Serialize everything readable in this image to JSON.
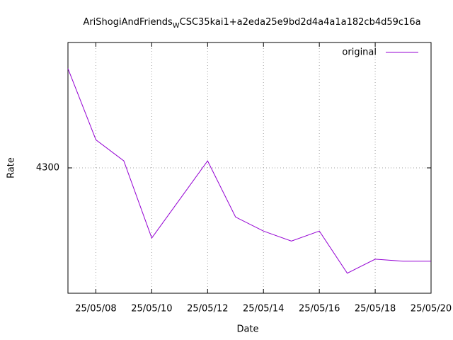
{
  "chart_data": {
    "type": "line",
    "title": [
      "AriShogiAndFriends",
      "W",
      "CSC35kai1+a2eda25e9bd2d4a4a1a182cb4d59c16a"
    ],
    "x_label": "Date",
    "y_label": "Rate",
    "x": [
      "25/05/07",
      "25/05/08",
      "25/05/09",
      "25/05/10",
      "25/05/12",
      "25/05/13",
      "25/05/14",
      "25/05/15",
      "25/05/16",
      "25/05/17",
      "25/05/18",
      "25/05/19",
      "25/05/20"
    ],
    "series": [
      {
        "name": "original",
        "color": "#9400d3",
        "values": [
          4399,
          4328,
          4307,
          4230,
          4307,
          4251,
          4237,
          4227,
          4237,
          4195,
          4209,
          4207,
          4207
        ]
      }
    ],
    "xlim": [
      "25/05/07",
      "25/05/20"
    ],
    "xticks": [
      "25/05/08",
      "25/05/10",
      "25/05/12",
      "25/05/14",
      "25/05/16",
      "25/05/18",
      "25/05/20"
    ],
    "ylim": [
      4175,
      4425
    ],
    "yticks": [
      4300
    ],
    "grid": true,
    "legend": "top-right"
  }
}
